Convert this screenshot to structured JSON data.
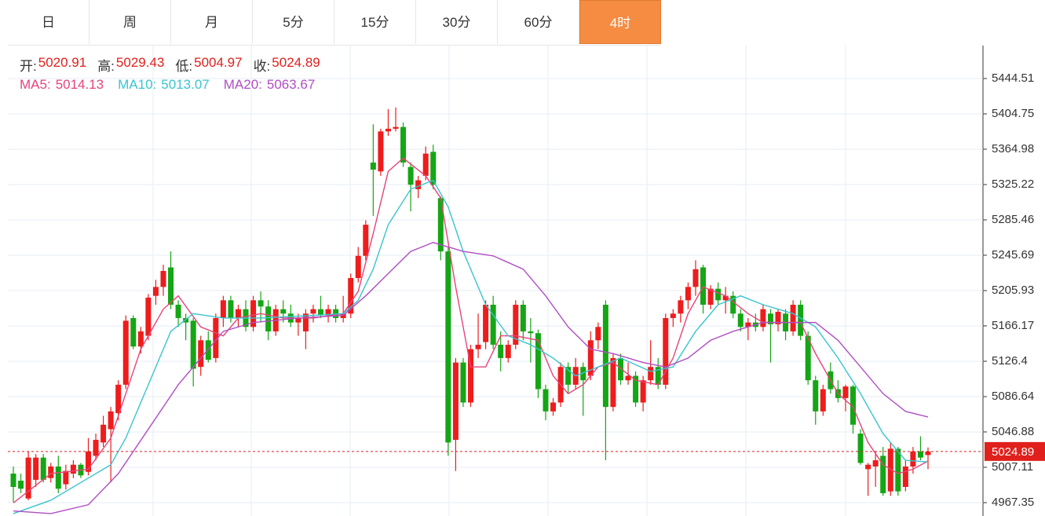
{
  "chart_data": {
    "type": "candlestick",
    "tabs": [
      "日",
      "周",
      "月",
      "5分",
      "15分",
      "30分",
      "60分",
      "4时"
    ],
    "active_tab": 7,
    "ohlc_legend": [
      {
        "label": "开:",
        "value": 5020.91
      },
      {
        "label": "高:",
        "value": 5029.43
      },
      {
        "label": "低:",
        "value": 5004.97
      },
      {
        "label": "收:",
        "value": 5024.89
      }
    ],
    "up_color": "#ee1c1c",
    "down_color": "#14a614",
    "ylim": [
      4952.3,
      5481.6
    ],
    "yticks": [
      4967.35,
      5007.11,
      5046.88,
      5086.64,
      5126.4,
      5166.17,
      5205.93,
      5245.69,
      5285.46,
      5325.22,
      5364.98,
      5404.75,
      5444.51
    ],
    "grid": true,
    "last_price": 5024.89,
    "ohlc": [
      [
        5000,
        5008,
        4968,
        4985
      ],
      [
        4992,
        5000,
        4978,
        4983
      ],
      [
        4972,
        5025,
        4970,
        5018
      ],
      [
        4993,
        5022,
        4985,
        5018
      ],
      [
        5018,
        5022,
        4990,
        4993
      ],
      [
        4995,
        5012,
        4990,
        5008
      ],
      [
        5008,
        5020,
        4978,
        4983
      ],
      [
        4988,
        5010,
        4982,
        5003
      ],
      [
        5000,
        5015,
        4995,
        5010
      ],
      [
        5010,
        5012,
        4995,
        4998
      ],
      [
        5002,
        5040,
        4998,
        5025
      ],
      [
        5020,
        5045,
        5015,
        5038
      ],
      [
        5035,
        5065,
        5030,
        5055
      ],
      [
        5050,
        5075,
        4990,
        5070
      ],
      [
        5068,
        5105,
        5060,
        5100
      ],
      [
        5100,
        5178,
        5095,
        5172
      ],
      [
        5175,
        5178,
        5140,
        5143
      ],
      [
        5143,
        5165,
        5135,
        5160
      ],
      [
        5155,
        5202,
        5150,
        5198
      ],
      [
        5200,
        5218,
        5190,
        5210
      ],
      [
        5210,
        5235,
        5200,
        5228
      ],
      [
        5232,
        5250,
        5185,
        5190
      ],
      [
        5190,
        5195,
        5165,
        5175
      ],
      [
        5175,
        5180,
        5150,
        5170
      ],
      [
        5172,
        5175,
        5098,
        5118
      ],
      [
        5120,
        5155,
        5110,
        5150
      ],
      [
        5150,
        5160,
        5125,
        5128
      ],
      [
        5130,
        5180,
        5125,
        5175
      ],
      [
        5175,
        5200,
        5165,
        5195
      ],
      [
        5195,
        5200,
        5170,
        5175
      ],
      [
        5175,
        5190,
        5165,
        5185
      ],
      [
        5185,
        5195,
        5160,
        5165
      ],
      [
        5165,
        5200,
        5160,
        5195
      ],
      [
        5195,
        5205,
        5170,
        5188
      ],
      [
        5188,
        5195,
        5150,
        5160
      ],
      [
        5160,
        5190,
        5155,
        5185
      ],
      [
        5185,
        5195,
        5170,
        5180
      ],
      [
        5180,
        5190,
        5165,
        5170
      ],
      [
        5170,
        5180,
        5155,
        5175
      ],
      [
        5160,
        5185,
        5140,
        5180
      ],
      [
        5180,
        5190,
        5170,
        5185
      ],
      [
        5185,
        5200,
        5175,
        5178
      ],
      [
        5178,
        5190,
        5170,
        5185
      ],
      [
        5185,
        5190,
        5170,
        5175
      ],
      [
        5175,
        5200,
        5170,
        5180
      ],
      [
        5180,
        5225,
        5175,
        5220
      ],
      [
        5220,
        5255,
        5215,
        5245
      ],
      [
        5245,
        5285,
        5240,
        5280
      ],
      [
        5350,
        5393,
        5290,
        5342
      ],
      [
        5340,
        5388,
        5335,
        5385
      ],
      [
        5385,
        5410,
        5380,
        5388
      ],
      [
        5388,
        5412,
        5385,
        5390
      ],
      [
        5390,
        5395,
        5345,
        5350
      ],
      [
        5345,
        5350,
        5295,
        5325
      ],
      [
        5320,
        5335,
        5310,
        5330
      ],
      [
        5335,
        5368,
        5330,
        5360
      ],
      [
        5362,
        5370,
        5320,
        5325
      ],
      [
        5310,
        5312,
        5240,
        5250
      ],
      [
        5250,
        5255,
        5020,
        5035
      ],
      [
        5038,
        5130,
        5003,
        5125
      ],
      [
        5125,
        5130,
        5075,
        5080
      ],
      [
        5080,
        5145,
        5075,
        5140
      ],
      [
        5140,
        5180,
        5130,
        5145
      ],
      [
        5148,
        5195,
        5140,
        5190
      ],
      [
        5190,
        5200,
        5140,
        5145
      ],
      [
        5145,
        5160,
        5115,
        5130
      ],
      [
        5130,
        5150,
        5125,
        5145
      ],
      [
        5145,
        5195,
        5140,
        5190
      ],
      [
        5190,
        5195,
        5150,
        5160
      ],
      [
        5160,
        5175,
        5125,
        5158
      ],
      [
        5158,
        5162,
        5085,
        5095
      ],
      [
        5095,
        5100,
        5060,
        5070
      ],
      [
        5070,
        5085,
        5065,
        5080
      ],
      [
        5080,
        5125,
        5075,
        5120
      ],
      [
        5120,
        5125,
        5090,
        5100
      ],
      [
        5100,
        5130,
        5095,
        5120
      ],
      [
        5120,
        5125,
        5065,
        5105
      ],
      [
        5110,
        5160,
        5105,
        5150
      ],
      [
        5150,
        5170,
        5140,
        5165
      ],
      [
        5190,
        5195,
        5015,
        5075
      ],
      [
        5075,
        5135,
        5070,
        5130
      ],
      [
        5130,
        5135,
        5100,
        5105
      ],
      [
        5105,
        5125,
        5100,
        5110
      ],
      [
        5110,
        5115,
        5075,
        5080
      ],
      [
        5080,
        5110,
        5070,
        5105
      ],
      [
        5105,
        5150,
        5100,
        5120
      ],
      [
        5120,
        5130,
        5095,
        5100
      ],
      [
        5100,
        5180,
        5095,
        5175
      ],
      [
        5175,
        5185,
        5165,
        5180
      ],
      [
        5180,
        5200,
        5170,
        5195
      ],
      [
        5195,
        5215,
        5185,
        5210
      ],
      [
        5210,
        5240,
        5200,
        5230
      ],
      [
        5232,
        5235,
        5180,
        5190
      ],
      [
        5190,
        5212,
        5185,
        5208
      ],
      [
        5208,
        5215,
        5190,
        5195
      ],
      [
        5195,
        5210,
        5180,
        5200
      ],
      [
        5200,
        5205,
        5175,
        5180
      ],
      [
        5180,
        5185,
        5160,
        5165
      ],
      [
        5165,
        5175,
        5150,
        5170
      ],
      [
        5170,
        5180,
        5160,
        5165
      ],
      [
        5165,
        5190,
        5160,
        5185
      ],
      [
        5180,
        5185,
        5125,
        5168
      ],
      [
        5168,
        5185,
        5160,
        5182
      ],
      [
        5180,
        5185,
        5150,
        5160
      ],
      [
        5160,
        5195,
        5155,
        5190
      ],
      [
        5190,
        5195,
        5150,
        5155
      ],
      [
        5155,
        5160,
        5100,
        5105
      ],
      [
        5105,
        5110,
        5055,
        5070
      ],
      [
        5070,
        5100,
        5065,
        5095
      ],
      [
        5115,
        5125,
        5090,
        5095
      ],
      [
        5095,
        5105,
        5080,
        5085
      ],
      [
        5085,
        5100,
        5070,
        5098
      ],
      [
        5098,
        5100,
        5045,
        5055
      ],
      [
        5045,
        5050,
        5010,
        5012
      ],
      [
        5005,
        5012,
        4975,
        5010
      ],
      [
        5008,
        5025,
        4985,
        5015
      ],
      [
        5020,
        5030,
        4975,
        4978
      ],
      [
        4980,
        5035,
        4975,
        5028
      ],
      [
        5028,
        5030,
        4975,
        4980
      ],
      [
        4985,
        5015,
        4980,
        5008
      ],
      [
        5008,
        5030,
        5000,
        5025
      ],
      [
        5025,
        5042,
        5015,
        5018
      ],
      [
        5020.91,
        5029.43,
        5004.97,
        5024.89
      ]
    ],
    "series": [
      {
        "name": "MA5:",
        "last": 5014.13,
        "color": "#e6447a",
        "x": [
          0,
          5,
          10,
          13,
          15,
          17,
          20,
          22,
          25,
          28,
          30,
          33,
          36,
          40,
          44,
          46,
          48,
          50,
          52,
          55,
          57,
          59,
          61,
          63,
          65,
          67,
          70,
          72,
          74,
          76,
          78,
          80,
          83,
          86,
          88,
          90,
          92,
          95,
          98,
          100,
          103,
          105,
          107,
          110,
          112,
          114,
          116,
          118,
          120,
          122
        ],
        "values": [
          4967,
          5000,
          5005,
          5040,
          5090,
          5140,
          5185,
          5200,
          5165,
          5155,
          5175,
          5180,
          5175,
          5175,
          5180,
          5205,
          5270,
          5340,
          5355,
          5335,
          5310,
          5210,
          5120,
          5120,
          5155,
          5155,
          5150,
          5110,
          5090,
          5100,
          5120,
          5125,
          5105,
          5100,
          5130,
          5180,
          5210,
          5200,
          5180,
          5170,
          5170,
          5170,
          5135,
          5090,
          5075,
          5035,
          5010,
          5000,
          5005,
          5014.13
        ]
      },
      {
        "name": "MA10:",
        "last": 5013.07,
        "color": "#39c4cf",
        "x": [
          0,
          5,
          10,
          13,
          15,
          18,
          21,
          24,
          28,
          33,
          40,
          44,
          46,
          48,
          50,
          53,
          56,
          58,
          60,
          63,
          66,
          69,
          72,
          75,
          78,
          81,
          85,
          88,
          91,
          94,
          97,
          100,
          104,
          107,
          110,
          113,
          116,
          119,
          122
        ],
        "values": [
          4955,
          4970,
          4995,
          5010,
          5040,
          5100,
          5160,
          5180,
          5175,
          5175,
          5178,
          5180,
          5195,
          5230,
          5280,
          5320,
          5330,
          5300,
          5250,
          5190,
          5155,
          5145,
          5130,
          5110,
          5120,
          5130,
          5115,
          5120,
          5160,
          5190,
          5200,
          5190,
          5180,
          5165,
          5130,
          5090,
          5045,
          5015,
          5013.07
        ]
      },
      {
        "name": "MA20:",
        "last": 5063.67,
        "color": "#b04ec4",
        "x": [
          0,
          5,
          10,
          14,
          18,
          22,
          25,
          28,
          32,
          38,
          44,
          47,
          50,
          53,
          56,
          60,
          64,
          68,
          71,
          74,
          77,
          80,
          84,
          87,
          90,
          93,
          96,
          100,
          104,
          107,
          110,
          113,
          116,
          119,
          122
        ],
        "values": [
          4958,
          4955,
          4965,
          5000,
          5050,
          5100,
          5130,
          5160,
          5170,
          5175,
          5178,
          5200,
          5225,
          5250,
          5260,
          5250,
          5245,
          5230,
          5200,
          5165,
          5140,
          5135,
          5125,
          5120,
          5130,
          5150,
          5160,
          5170,
          5170,
          5170,
          5150,
          5120,
          5090,
          5070,
          5063.67
        ]
      }
    ]
  }
}
